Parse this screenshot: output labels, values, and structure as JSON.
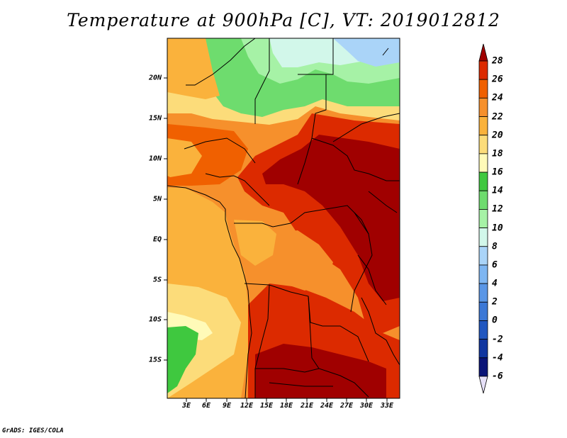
{
  "title": "Temperature at 900hPa [C], VT: 2019012812",
  "map": {
    "variable": "Temperature",
    "level": "900hPa",
    "units": "C",
    "valid_time": "2019012812",
    "lat_labels": [
      "20N",
      "15N",
      "10N",
      "5N",
      "EQ",
      "5S",
      "10S",
      "15S"
    ],
    "lon_labels": [
      "3E",
      "6E",
      "9E",
      "12E",
      "15E",
      "18E",
      "21E",
      "24E",
      "27E",
      "30E",
      "33E"
    ]
  },
  "colorbar": {
    "levels": [
      "28",
      "26",
      "24",
      "22",
      "20",
      "18",
      "16",
      "14",
      "12",
      "10",
      "8",
      "6",
      "4",
      "2",
      "0",
      "-2",
      "-4",
      "-6"
    ],
    "colors": [
      "#a00000",
      "#dc2a00",
      "#f06000",
      "#f6902c",
      "#fab23c",
      "#fcdc7a",
      "#fffab8",
      "#3fc83f",
      "#6edc6e",
      "#a6f2a6",
      "#d2f7ea",
      "#aad4f8",
      "#7eb6f2",
      "#5a96e6",
      "#3c78d6",
      "#2056c0",
      "#1036a0",
      "#0a1478",
      "#e6e0f8"
    ]
  },
  "footer": "GrADS: IGES/COLA"
}
